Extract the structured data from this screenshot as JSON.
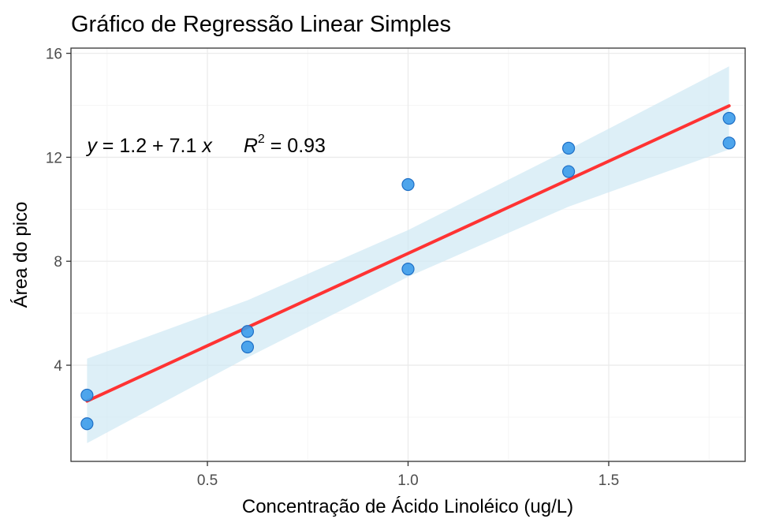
{
  "chart_data": {
    "type": "scatter",
    "title": "Gráfico de Regressão Linear Simples",
    "xlabel": "Concentração de Ácido Linoléico (ug/L)",
    "ylabel": "Área do pico",
    "xlim": [
      0.16,
      1.84
    ],
    "ylim": [
      0.3,
      16.2
    ],
    "x_ticks": [
      0.5,
      1.0,
      1.5
    ],
    "x_tick_labels": [
      "0.5",
      "1.0",
      "1.5"
    ],
    "y_ticks": [
      4,
      8,
      12,
      16
    ],
    "y_tick_labels": [
      "4",
      "8",
      "12",
      "16"
    ],
    "grid": true,
    "points": [
      {
        "x": 0.2,
        "y": 2.85
      },
      {
        "x": 0.2,
        "y": 1.75
      },
      {
        "x": 0.6,
        "y": 5.3
      },
      {
        "x": 0.6,
        "y": 4.7
      },
      {
        "x": 1.0,
        "y": 10.95
      },
      {
        "x": 1.0,
        "y": 7.7
      },
      {
        "x": 1.4,
        "y": 12.35
      },
      {
        "x": 1.4,
        "y": 11.45
      },
      {
        "x": 1.8,
        "y": 13.5
      },
      {
        "x": 1.8,
        "y": 12.55
      }
    ],
    "regression": {
      "intercept": 1.2,
      "slope": 7.1,
      "x_range": [
        0.2,
        1.8
      ],
      "band": [
        {
          "x": 0.2,
          "lower": 1.0,
          "upper": 4.25
        },
        {
          "x": 0.6,
          "lower": 4.3,
          "upper": 6.5
        },
        {
          "x": 1.0,
          "lower": 7.4,
          "upper": 9.2
        },
        {
          "x": 1.4,
          "lower": 10.1,
          "upper": 12.3
        },
        {
          "x": 1.8,
          "lower": 12.3,
          "upper": 15.5
        }
      ]
    },
    "annotation": {
      "y_symbol": "y",
      "equals": " = ",
      "intercept": "1.2",
      "plus": " + ",
      "slope": "7.1",
      "x_symbol": " x",
      "r_symbol": "R",
      "r_exponent": "2",
      "r_equals": " = ",
      "r_value": "0.93",
      "x": 0.2,
      "y": 12.2
    },
    "colors": {
      "point_fill": "#3b9bea",
      "point_stroke": "#1f6fc5",
      "line": "#ff3333",
      "band": "#cfe8f3",
      "grid_major": "#ebebeb",
      "grid_minor": "#f5f5f5",
      "panel_border": "#333333"
    }
  }
}
